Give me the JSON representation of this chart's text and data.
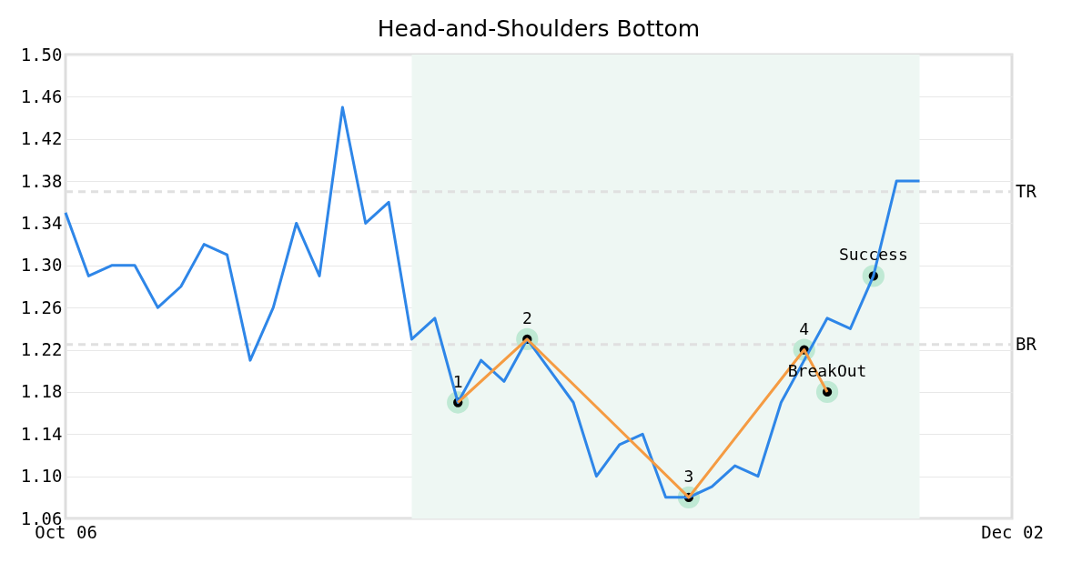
{
  "chart_data": {
    "type": "line",
    "title": "Head-and-Shoulders Bottom",
    "categories": [
      "Oct 06",
      null,
      null,
      null,
      null,
      null,
      null,
      null,
      null,
      null,
      null,
      null,
      null,
      null,
      null,
      null,
      null,
      null,
      null,
      null,
      null,
      null,
      null,
      null,
      null,
      null,
      null,
      null,
      null,
      null,
      null,
      null,
      null,
      null,
      null,
      null,
      null,
      null,
      null,
      null,
      null,
      "Dec 02"
    ],
    "series": [
      {
        "color": "#2e86e8",
        "values": [
          1.35,
          1.29,
          1.3,
          1.3,
          1.26,
          1.28,
          1.32,
          1.31,
          1.21,
          1.26,
          1.34,
          1.29,
          1.45,
          1.34,
          1.36,
          1.23,
          1.25,
          1.17,
          1.21,
          1.19,
          1.23,
          1.2,
          1.17,
          1.1,
          1.13,
          1.14,
          1.08,
          1.08,
          1.09,
          1.11,
          1.1,
          1.17,
          1.21,
          1.25,
          1.24,
          1.29,
          1.38,
          1.38,
          null,
          null,
          null,
          null
        ]
      },
      {
        "type": "line",
        "color": "#f59b42",
        "values": [
          null,
          null,
          null,
          null,
          null,
          null,
          null,
          null,
          null,
          null,
          null,
          null,
          null,
          null,
          null,
          null,
          null,
          1.17,
          null,
          null,
          1.23,
          null,
          null,
          null,
          null,
          null,
          null,
          1.08,
          null,
          null,
          null,
          null,
          1.22,
          1.18,
          null,
          null,
          null,
          null,
          null,
          null,
          null,
          null
        ]
      },
      {
        "type": "scatter",
        "name": "1",
        "color": "#000000",
        "marker": "circle",
        "values": [
          null,
          null,
          null,
          null,
          null,
          null,
          null,
          null,
          null,
          null,
          null,
          null,
          null,
          null,
          null,
          null,
          null,
          1.17,
          null,
          null,
          null,
          null,
          null,
          null,
          null,
          null,
          null,
          null,
          null,
          null,
          null,
          null,
          null,
          null,
          null,
          null,
          null,
          null,
          null,
          null,
          null,
          null
        ]
      },
      {
        "type": "scatter",
        "name": "2",
        "color": "#000000",
        "marker": "circle",
        "values": [
          null,
          null,
          null,
          null,
          null,
          null,
          null,
          null,
          null,
          null,
          null,
          null,
          null,
          null,
          null,
          null,
          null,
          null,
          null,
          null,
          1.23,
          null,
          null,
          null,
          null,
          null,
          null,
          null,
          null,
          null,
          null,
          null,
          null,
          null,
          null,
          null,
          null,
          null,
          null,
          null,
          null,
          null
        ]
      },
      {
        "type": "scatter",
        "name": "3",
        "color": "#000000",
        "marker": "circle",
        "values": [
          null,
          null,
          null,
          null,
          null,
          null,
          null,
          null,
          null,
          null,
          null,
          null,
          null,
          null,
          null,
          null,
          null,
          null,
          null,
          null,
          null,
          null,
          null,
          null,
          null,
          null,
          null,
          1.08,
          null,
          null,
          null,
          null,
          null,
          null,
          null,
          null,
          null,
          null,
          null,
          null,
          null,
          null
        ]
      },
      {
        "type": "scatter",
        "name": "4",
        "color": "#000000",
        "marker": "circle",
        "values": [
          null,
          null,
          null,
          null,
          null,
          null,
          null,
          null,
          null,
          null,
          null,
          null,
          null,
          null,
          null,
          null,
          null,
          null,
          null,
          null,
          null,
          null,
          null,
          null,
          null,
          null,
          null,
          null,
          null,
          null,
          null,
          null,
          1.22,
          null,
          null,
          null,
          null,
          null,
          null,
          null,
          null,
          null
        ]
      },
      {
        "type": "scatter",
        "name": "BreakOut",
        "color": "#000000",
        "marker": "circle",
        "values": [
          null,
          null,
          null,
          null,
          null,
          null,
          null,
          null,
          null,
          null,
          null,
          null,
          null,
          null,
          null,
          null,
          null,
          null,
          null,
          null,
          null,
          null,
          null,
          null,
          null,
          null,
          null,
          null,
          null,
          null,
          null,
          null,
          null,
          1.18,
          null,
          null,
          null,
          null,
          null,
          null,
          null,
          null
        ]
      },
      {
        "type": "scatter",
        "name": "Success",
        "color": "#000000",
        "marker": "circle",
        "values": [
          null,
          null,
          null,
          null,
          null,
          null,
          null,
          null,
          null,
          null,
          null,
          null,
          null,
          null,
          null,
          null,
          null,
          null,
          null,
          null,
          null,
          null,
          null,
          null,
          null,
          null,
          null,
          null,
          null,
          null,
          null,
          null,
          null,
          null,
          null,
          1.29,
          null,
          null,
          null,
          null,
          null,
          null
        ]
      }
    ],
    "ylim": [
      1.06,
      1.5
    ],
    "yticks": [
      {
        "value": 1.06,
        "label": "1.06"
      },
      {
        "value": 1.1,
        "label": "1.10"
      },
      {
        "value": 1.14,
        "label": "1.14"
      },
      {
        "value": 1.18,
        "label": "1.18"
      },
      {
        "value": 1.22,
        "label": "1.22"
      },
      {
        "value": 1.26,
        "label": "1.26"
      },
      {
        "value": 1.3,
        "label": "1.30"
      },
      {
        "value": 1.34,
        "label": "1.34"
      },
      {
        "value": 1.38,
        "label": "1.38"
      },
      {
        "value": 1.42,
        "label": "1.42"
      },
      {
        "value": 1.46,
        "label": "1.46"
      },
      {
        "value": 1.5,
        "label": "1.50"
      }
    ],
    "grid": "y",
    "ref_lines": [
      {
        "axis": "y",
        "value": 1.37,
        "label": "TR",
        "color": "#e0e0e0",
        "line_style": "dashed"
      },
      {
        "axis": "y",
        "value": 1.225,
        "label": "BR",
        "color": "#e0e0e0",
        "line_style": "dashed"
      }
    ]
  }
}
